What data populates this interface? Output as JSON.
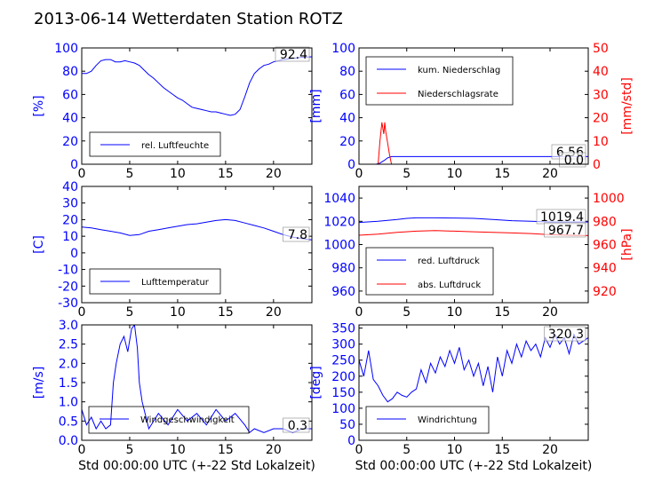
{
  "figure": {
    "title": "2013-06-14 Wetterdaten Station ROTZ"
  },
  "colors": {
    "primary": "#0000ff",
    "secondary": "#ff0000",
    "text": "#000000"
  },
  "chart_data": [
    {
      "id": "humidity",
      "type": "line",
      "xlim": [
        0,
        24
      ],
      "ylim": [
        0,
        100
      ],
      "xticks": [
        0,
        5,
        10,
        15,
        20
      ],
      "yticks": [
        0,
        20,
        40,
        60,
        80,
        100
      ],
      "ylabel": "[%]",
      "current_value_label": "92.4",
      "legend_position": "lower-left",
      "series": [
        {
          "name": "rel. Luftfeuchte",
          "axis": "left",
          "color": "#0000ff",
          "x": [
            0,
            0.5,
            1,
            1.5,
            2,
            2.5,
            3,
            3.5,
            4,
            4.5,
            5,
            5.5,
            6,
            6.5,
            7,
            7.5,
            8,
            8.5,
            9,
            9.5,
            10,
            10.5,
            11,
            11.5,
            12,
            12.5,
            13,
            13.5,
            14,
            14.5,
            15,
            15.5,
            16,
            16.5,
            17,
            17.5,
            18,
            18.5,
            19,
            19.5,
            20,
            21,
            22,
            23,
            24
          ],
          "values": [
            78,
            78,
            80,
            85,
            89,
            90,
            90,
            88,
            88,
            89,
            88,
            87,
            85,
            81,
            77,
            74,
            70,
            66,
            63,
            60,
            57,
            55,
            52,
            49,
            48,
            47,
            46,
            45,
            45,
            44,
            43,
            42,
            43,
            47,
            58,
            70,
            78,
            82,
            85,
            86,
            88,
            90,
            91,
            92,
            92.4
          ]
        }
      ]
    },
    {
      "id": "precipitation",
      "type": "line",
      "xlim": [
        0,
        24
      ],
      "ylim": [
        0,
        100
      ],
      "ylim_right": [
        0,
        50
      ],
      "xticks": [
        0,
        5,
        10,
        15,
        20
      ],
      "yticks": [
        0,
        20,
        40,
        60,
        80,
        100
      ],
      "yticks_right": [
        0,
        10,
        20,
        30,
        40,
        50
      ],
      "ylabel": "[mm]",
      "ylabel_right": "[mm/std]",
      "current_value_labels": [
        "6.56",
        "0.0"
      ],
      "legend_position": "upper-left",
      "series": [
        {
          "name": "kum. Niederschlag",
          "axis": "left",
          "color": "#0000ff",
          "x": [
            0,
            1.8,
            2.2,
            2.6,
            3.0,
            3.4,
            24
          ],
          "values": [
            0,
            0,
            1,
            3,
            5.5,
            6.56,
            6.56
          ]
        },
        {
          "name": "Niederschlagsrate",
          "axis": "right",
          "color": "#ff0000",
          "x": [
            0,
            2.0,
            2.2,
            2.4,
            2.6,
            2.7,
            2.8,
            3.0,
            3.2,
            3.4,
            24
          ],
          "values": [
            0,
            0,
            10,
            18,
            13,
            18,
            14,
            9,
            4,
            0,
            0
          ]
        }
      ]
    },
    {
      "id": "temperature",
      "type": "line",
      "xlim": [
        0,
        24
      ],
      "ylim": [
        -30,
        40
      ],
      "xticks": [
        0,
        5,
        10,
        15,
        20
      ],
      "yticks": [
        -30,
        -20,
        -10,
        0,
        10,
        20,
        30,
        40
      ],
      "ylabel": "[C]",
      "current_value_label": "7.8",
      "legend_position": "lower-left",
      "series": [
        {
          "name": "Lufttemperatur",
          "axis": "left",
          "color": "#0000ff",
          "x": [
            0,
            1,
            2,
            3,
            4,
            5,
            6,
            7,
            8,
            9,
            10,
            11,
            12,
            13,
            14,
            15,
            16,
            17,
            18,
            19,
            20,
            21,
            22,
            23,
            24
          ],
          "values": [
            15.5,
            15,
            14,
            13,
            12,
            10.5,
            11,
            13,
            14,
            15,
            16,
            17,
            17.5,
            18.5,
            19.5,
            20,
            19.5,
            18,
            16.5,
            15,
            13,
            11,
            9.5,
            8.5,
            7.8
          ]
        }
      ]
    },
    {
      "id": "pressure",
      "type": "line",
      "xlim": [
        0,
        24
      ],
      "ylim": [
        950,
        1050
      ],
      "ylim_right": [
        910,
        1010
      ],
      "xticks": [
        0,
        5,
        10,
        15,
        20
      ],
      "yticks": [
        960,
        980,
        1000,
        1020,
        1040
      ],
      "yticks_right": [
        920,
        940,
        960,
        980,
        1000
      ],
      "ylabel_right": "[hPa]",
      "current_value_labels": [
        "1019.4",
        "967.7"
      ],
      "legend_position": "lower-left",
      "series": [
        {
          "name": "red. Luftdruck",
          "axis": "left",
          "color": "#0000ff",
          "x": [
            0,
            2,
            4,
            5,
            6,
            8,
            10,
            12,
            14,
            16,
            18,
            20,
            22,
            24
          ],
          "values": [
            1019,
            1020,
            1021.5,
            1022.5,
            1023,
            1023,
            1022.8,
            1022.5,
            1021.5,
            1020.5,
            1020,
            1019.5,
            1019.4,
            1019.4
          ]
        },
        {
          "name": "abs. Luftdruck",
          "axis": "right",
          "color": "#ff0000",
          "x": [
            0,
            2,
            4,
            6,
            8,
            10,
            12,
            14,
            16,
            18,
            20,
            22,
            24
          ],
          "values": [
            968,
            969,
            970.5,
            971.5,
            972,
            971.5,
            971,
            970.5,
            970,
            969.5,
            968.5,
            968,
            967.7
          ]
        }
      ]
    },
    {
      "id": "windspeed",
      "type": "line",
      "xlim": [
        0,
        24
      ],
      "ylim": [
        0,
        3
      ],
      "xticks": [
        0,
        5,
        10,
        15,
        20
      ],
      "yticks": [
        0.0,
        0.5,
        1.0,
        1.5,
        2.0,
        2.5,
        3.0
      ],
      "ylabel": "[m/s]",
      "xlabel": "Std 00:00:00 UTC (+-22 Std Lokalzeit)",
      "current_value_label": "0.3",
      "legend_position": "lower-left",
      "series": [
        {
          "name": "Windgeschwindigkeit",
          "axis": "left",
          "color": "#0000ff",
          "x": [
            0,
            0.5,
            1,
            1.5,
            2,
            2.5,
            3,
            3.3,
            3.6,
            4,
            4.4,
            4.8,
            5.2,
            5.5,
            5.8,
            6,
            6.3,
            6.7,
            7,
            8,
            9,
            10,
            11,
            12,
            13,
            14,
            15,
            16,
            17,
            17.5,
            18,
            19,
            20,
            21,
            22,
            23,
            24
          ],
          "values": [
            0.8,
            0.4,
            0.6,
            0.3,
            0.5,
            0.3,
            0.4,
            1.5,
            2.0,
            2.5,
            2.7,
            2.3,
            2.9,
            3.0,
            2.4,
            1.5,
            1.0,
            0.6,
            0.3,
            0.7,
            0.4,
            0.8,
            0.5,
            0.7,
            0.4,
            0.8,
            0.5,
            0.7,
            0.4,
            0.2,
            0.3,
            0.2,
            0.3,
            0.3,
            0.2,
            0.3,
            0.3
          ]
        }
      ]
    },
    {
      "id": "winddirection",
      "type": "line",
      "xlim": [
        0,
        24
      ],
      "ylim": [
        0,
        360
      ],
      "xticks": [
        0,
        5,
        10,
        15,
        20
      ],
      "yticks": [
        0,
        50,
        100,
        150,
        200,
        250,
        300,
        350
      ],
      "ylabel": "[deg]",
      "xlabel": "Std 00:00:00 UTC (+-22 Std Lokalzeit)",
      "current_value_label": "320.3",
      "legend_position": "lower-left",
      "series": [
        {
          "name": "Windrichtung",
          "axis": "left",
          "color": "#0000ff",
          "x": [
            0,
            0.5,
            1,
            1.5,
            2,
            2.5,
            3,
            3.5,
            4,
            4.5,
            5,
            5.5,
            6,
            6.5,
            7,
            7.5,
            8,
            8.5,
            9,
            9.5,
            10,
            10.5,
            11,
            11.5,
            12,
            12.5,
            13,
            13.5,
            14,
            14.5,
            15,
            15.5,
            16,
            16.5,
            17,
            17.5,
            18,
            18.5,
            19,
            19.5,
            20,
            20.5,
            21,
            21.5,
            22,
            22.5,
            23,
            23.5,
            24
          ],
          "values": [
            250,
            200,
            280,
            190,
            170,
            140,
            120,
            130,
            150,
            140,
            135,
            150,
            160,
            220,
            180,
            240,
            210,
            260,
            230,
            280,
            240,
            290,
            220,
            250,
            200,
            240,
            170,
            230,
            150,
            260,
            200,
            280,
            240,
            300,
            260,
            310,
            280,
            300,
            260,
            320,
            290,
            330,
            300,
            320,
            270,
            330,
            300,
            310,
            320
          ]
        }
      ]
    }
  ]
}
